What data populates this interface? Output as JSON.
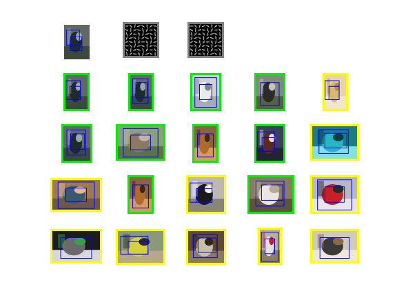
{
  "colors": {
    "background": "#ffffff",
    "frame_positive": "#00ee00",
    "frame_negative": "#ffff00",
    "frame_template": "#808080",
    "box": "#0000ff"
  },
  "query_row": {
    "thumbnails": [
      {
        "kind": "photo",
        "content": "person-with-horse",
        "frame": "none"
      },
      {
        "kind": "hog-template",
        "content": "hog-descriptor",
        "frame": "template"
      },
      {
        "kind": "hog-template",
        "content": "hog-descriptor",
        "frame": "template"
      }
    ]
  },
  "result_rows": [
    [
      {
        "content": "person-with-horse",
        "frame": "positive"
      },
      {
        "content": "person-with-horse",
        "frame": "positive"
      },
      {
        "content": "white-horse",
        "frame": "positive"
      },
      {
        "content": "horse-and-rider",
        "frame": "positive"
      },
      {
        "content": "beige-object",
        "frame": "negative"
      }
    ],
    [
      {
        "content": "person-with-horse",
        "frame": "positive"
      },
      {
        "content": "horse-in-field",
        "frame": "positive"
      },
      {
        "content": "brown-horse",
        "frame": "positive"
      },
      {
        "content": "horse-head-closeup",
        "frame": "positive"
      },
      {
        "content": "teal-bedroom",
        "frame": "negative"
      }
    ],
    [
      {
        "content": "people-indoors",
        "frame": "negative"
      },
      {
        "content": "brown-horse",
        "frame": "positive"
      },
      {
        "content": "black-and-white-animal",
        "frame": "negative"
      },
      {
        "content": "white-horse-face",
        "frame": "positive"
      },
      {
        "content": "red-motorcycle",
        "frame": "negative"
      }
    ],
    [
      {
        "content": "dark-room-plant",
        "frame": "negative"
      },
      {
        "content": "cyclist-with-bike",
        "frame": "negative"
      },
      {
        "content": "goat-in-pen",
        "frame": "negative"
      },
      {
        "content": "dog-santa-hat",
        "frame": "negative"
      },
      {
        "content": "bicycle",
        "frame": "negative"
      }
    ]
  ]
}
